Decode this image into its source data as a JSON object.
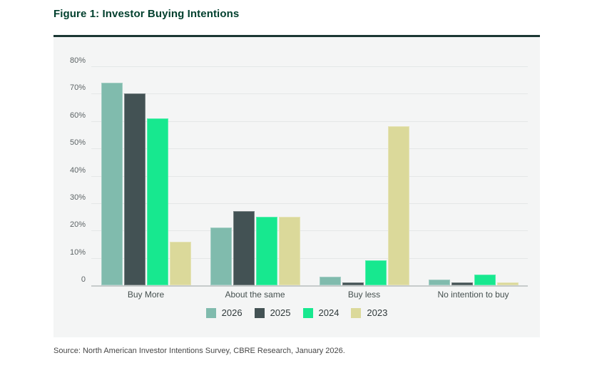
{
  "figure": {
    "title": "Figure 1: Investor Buying Intentions",
    "source": "Source: North American Investor Intentions Survey, CBRE Research, January 2026."
  },
  "colors": {
    "title_text": "#003F2D",
    "title_rule": "#1b3733",
    "panel_background": "#f4f5f5",
    "series_2026": "#80BBAD",
    "series_2025": "#435254",
    "series_2024": "#17E88F",
    "series_2023": "#DBD99A"
  },
  "chart_data": {
    "type": "bar",
    "title": "Figure 1: Investor Buying Intentions",
    "categories": [
      "Buy More",
      "About the same",
      "Buy less",
      "No intention to buy"
    ],
    "series": [
      {
        "name": "2026",
        "color": "#80BBAD",
        "values": [
          74,
          21,
          3,
          2
        ]
      },
      {
        "name": "2025",
        "color": "#435254",
        "values": [
          70,
          27,
          1,
          1
        ]
      },
      {
        "name": "2024",
        "color": "#17E88F",
        "values": [
          61,
          25,
          9,
          4
        ]
      },
      {
        "name": "2023",
        "color": "#DBD99A",
        "values": [
          16,
          25,
          58,
          1
        ]
      }
    ],
    "xlabel": "",
    "ylabel": "",
    "ylim": [
      0,
      80
    ],
    "yticks": [
      "80%",
      "70%",
      "60%",
      "50%",
      "40%",
      "30%",
      "20%",
      "10%",
      "0"
    ],
    "ytick_values": [
      80,
      70,
      60,
      50,
      40,
      30,
      20,
      10,
      0
    ],
    "grid": true,
    "legend_position": "bottom",
    "legend_labels": [
      "2026",
      "2025",
      "2024",
      "2023"
    ]
  }
}
